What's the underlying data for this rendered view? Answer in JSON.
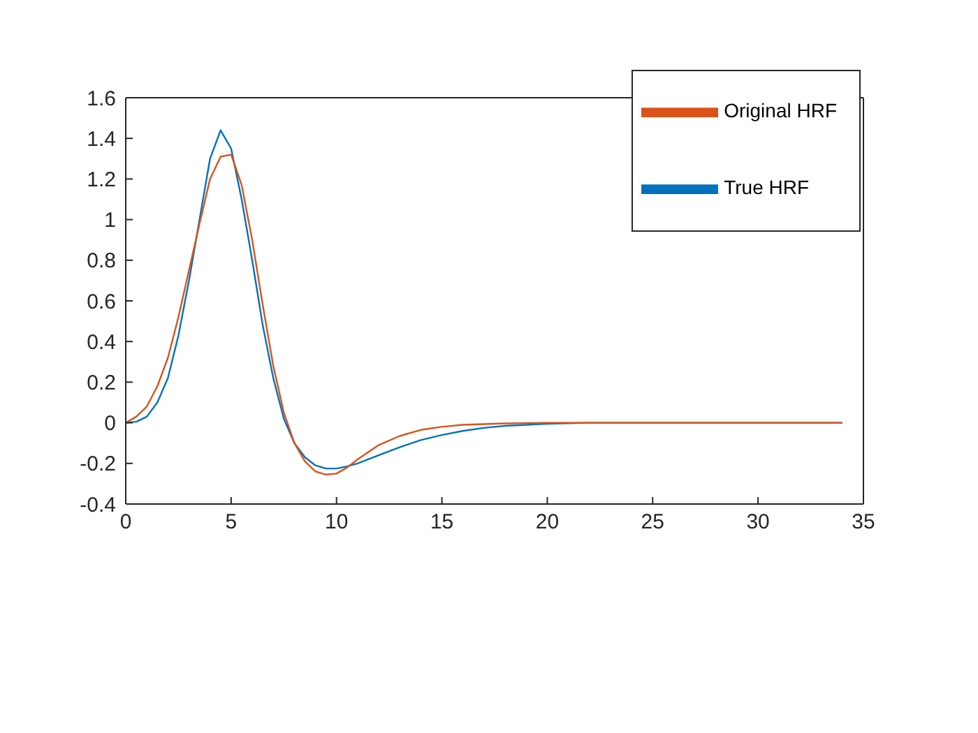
{
  "chart_data": {
    "type": "line",
    "legend": "top right",
    "grid": false,
    "marker": "none",
    "line_style": "solid",
    "xlim": [
      0,
      35
    ],
    "xticks": [
      0,
      5,
      10,
      15,
      20,
      25,
      30,
      35
    ],
    "ylim": [
      -0.4,
      1.6
    ],
    "yticks": [
      -0.4,
      -0.2,
      0,
      0.2,
      0.4,
      0.6,
      0.8,
      1,
      1.2,
      1.4,
      1.6
    ],
    "series": [
      {
        "name": "True HRF",
        "color": "#0072bd",
        "x": [
          0,
          0.5,
          1,
          1.5,
          2,
          2.5,
          3,
          3.5,
          4,
          4.5,
          5,
          5.5,
          6,
          6.5,
          7,
          7.5,
          8,
          8.5,
          9,
          9.5,
          10,
          10.5,
          11,
          12,
          13,
          14,
          15,
          16,
          17,
          18,
          20,
          22,
          34
        ],
        "values": [
          0,
          0.005,
          0.03,
          0.1,
          0.22,
          0.43,
          0.7,
          1.0,
          1.3,
          1.44,
          1.35,
          1.1,
          0.8,
          0.48,
          0.22,
          0.02,
          -0.1,
          -0.17,
          -0.21,
          -0.225,
          -0.225,
          -0.215,
          -0.2,
          -0.16,
          -0.12,
          -0.085,
          -0.06,
          -0.04,
          -0.025,
          -0.015,
          -0.005,
          0,
          0
        ]
      },
      {
        "name": "Original HRF",
        "color": "#d95319",
        "x": [
          0,
          0.5,
          1,
          1.5,
          2,
          2.5,
          3,
          3.5,
          4,
          4.5,
          5,
          5.5,
          6,
          6.5,
          7,
          7.5,
          8,
          8.5,
          9,
          9.5,
          10,
          10.5,
          11,
          12,
          13,
          14,
          15,
          16,
          18,
          20,
          34
        ],
        "values": [
          0,
          0.03,
          0.08,
          0.18,
          0.32,
          0.52,
          0.75,
          0.98,
          1.2,
          1.31,
          1.32,
          1.17,
          0.9,
          0.58,
          0.28,
          0.05,
          -0.1,
          -0.19,
          -0.24,
          -0.255,
          -0.25,
          -0.22,
          -0.18,
          -0.11,
          -0.065,
          -0.035,
          -0.02,
          -0.01,
          -0.003,
          0,
          0
        ]
      }
    ]
  }
}
